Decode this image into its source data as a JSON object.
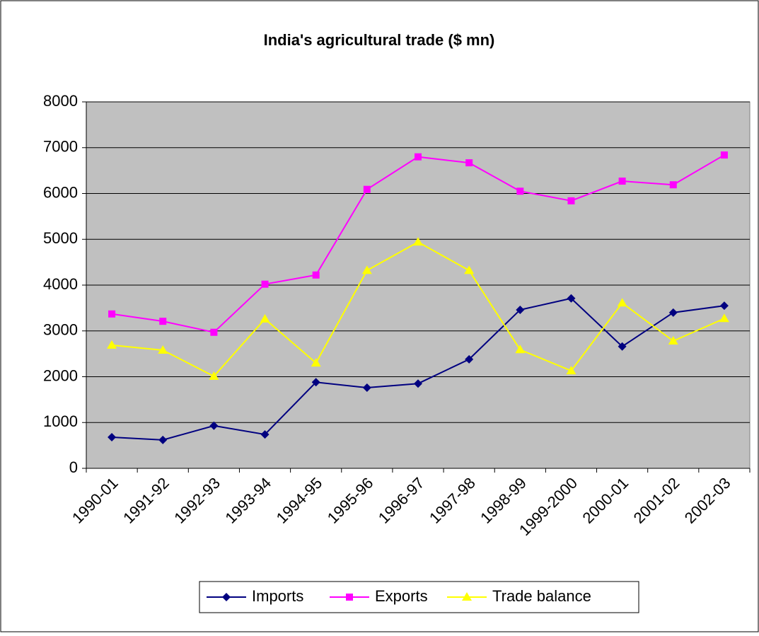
{
  "chart_data": {
    "type": "line",
    "title": "India's agricultural trade ($ mn)",
    "categories": [
      "1990-01",
      "1991-92",
      "1992-93",
      "1993-94",
      "1994-95",
      "1995-96",
      "1996-97",
      "1997-98",
      "1998-99",
      "1999-2000",
      "2000-01",
      "2001-02",
      "2002-03"
    ],
    "series": [
      {
        "name": "Imports",
        "color": "#000080",
        "marker": "diamond",
        "values": [
          680,
          620,
          930,
          740,
          1880,
          1760,
          1850,
          2380,
          3460,
          3710,
          2660,
          3400,
          3550
        ]
      },
      {
        "name": "Exports",
        "color": "#ff00ff",
        "marker": "square",
        "values": [
          3370,
          3210,
          2970,
          4020,
          4220,
          6090,
          6800,
          6670,
          6050,
          5840,
          6270,
          6190,
          6840
        ]
      },
      {
        "name": "Trade balance",
        "color": "#ffff00",
        "marker": "triangle",
        "values": [
          2690,
          2580,
          2010,
          3260,
          2300,
          4320,
          4940,
          4320,
          2590,
          2130,
          3610,
          2780,
          3270
        ]
      }
    ],
    "ylim": [
      0,
      8000
    ],
    "yticks": [
      0,
      1000,
      2000,
      3000,
      4000,
      5000,
      6000,
      7000,
      8000
    ],
    "grid": true,
    "plot_background": "#c0c0c0",
    "legend": "bottom"
  }
}
